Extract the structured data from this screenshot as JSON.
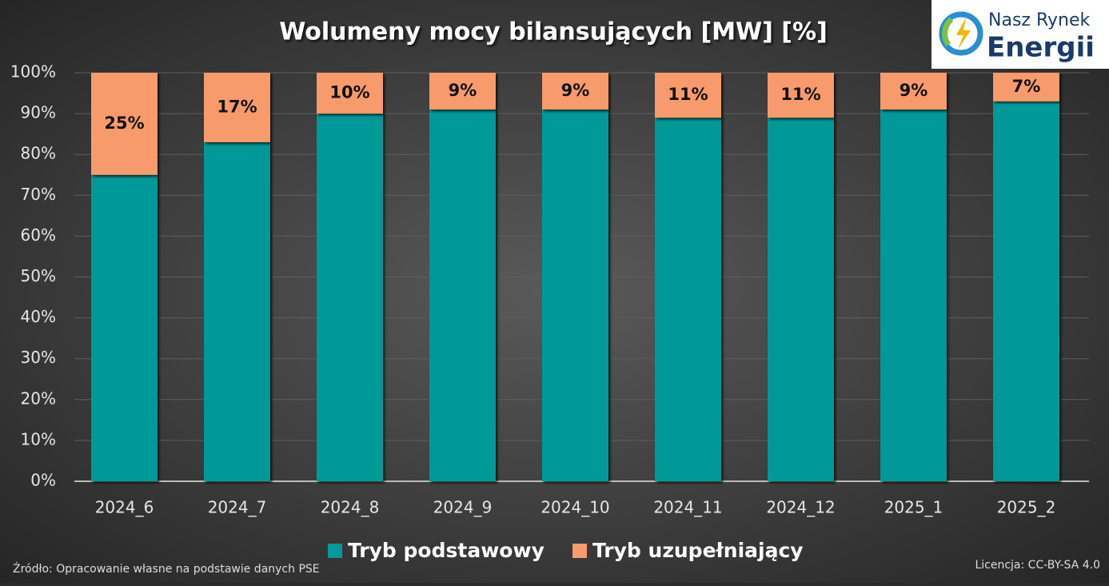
{
  "chart_data": {
    "type": "stacked-bar",
    "title": "Wolumeny mocy bilansujących [MW] [%]",
    "categories": [
      "2024_6",
      "2024_7",
      "2024_8",
      "2024_9",
      "2024_10",
      "2024_11",
      "2024_12",
      "2025_1",
      "2025_2"
    ],
    "series": [
      {
        "name": "Tryb podstawowy",
        "color": "#009999",
        "values": [
          75,
          83,
          90,
          91,
          91,
          89,
          89,
          91,
          93
        ]
      },
      {
        "name": "Tryb uzupełniający",
        "color": "#f79b6c",
        "values": [
          25,
          17,
          10,
          9,
          9,
          11,
          11,
          9,
          7
        ],
        "value_labels": [
          "25%",
          "17%",
          "10%",
          "9%",
          "9%",
          "11%",
          "11%",
          "9%",
          "7%"
        ]
      }
    ],
    "ylim": [
      0,
      100
    ],
    "yticks": [
      {
        "value": 0,
        "label": "0%"
      },
      {
        "value": 10,
        "label": "10%"
      },
      {
        "value": 20,
        "label": "20%"
      },
      {
        "value": 30,
        "label": "30%"
      },
      {
        "value": 40,
        "label": "40%"
      },
      {
        "value": 50,
        "label": "50%"
      },
      {
        "value": 60,
        "label": "60%"
      },
      {
        "value": 70,
        "label": "70%"
      },
      {
        "value": 80,
        "label": "80%"
      },
      {
        "value": 90,
        "label": "90%"
      },
      {
        "value": 100,
        "label": "100%"
      }
    ],
    "grid": true,
    "legend": "bottom",
    "source": "Źródło: Opracowanie własne na podstawie danych PSE",
    "license": "Licencja: CC-BY-SA 4.0",
    "logo": [
      "Nasz Rynek",
      "Energii"
    ]
  }
}
